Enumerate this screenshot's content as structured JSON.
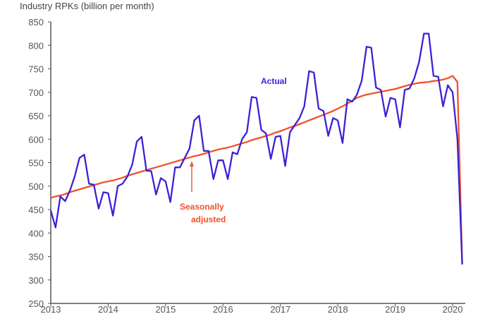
{
  "chart_data": {
    "type": "line",
    "title": "Industry RPKs (billion per month)",
    "xlabel": "",
    "ylabel": "",
    "ylim": [
      250,
      850
    ],
    "yticks": [
      250,
      300,
      350,
      400,
      450,
      500,
      550,
      600,
      650,
      700,
      750,
      800,
      850
    ],
    "xtick_labels": [
      "2013",
      "2014",
      "2015",
      "2016",
      "2017",
      "2018",
      "2019",
      "2020"
    ],
    "x_start": "2013-01",
    "frequency": "monthly",
    "grid": false,
    "series": [
      {
        "name": "Actual",
        "color": "#3b22d6",
        "values": [
          448,
          412,
          478,
          468,
          490,
          520,
          560,
          567,
          505,
          503,
          452,
          487,
          485,
          437,
          500,
          505,
          520,
          545,
          595,
          605,
          533,
          532,
          482,
          517,
          510,
          466,
          540,
          540,
          560,
          580,
          640,
          650,
          575,
          575,
          515,
          555,
          555,
          515,
          572,
          568,
          600,
          615,
          690,
          688,
          620,
          612,
          558,
          605,
          607,
          543,
          615,
          630,
          645,
          670,
          745,
          742,
          665,
          660,
          607,
          645,
          640,
          592,
          685,
          680,
          695,
          725,
          797,
          795,
          710,
          705,
          648,
          688,
          685,
          625,
          705,
          708,
          730,
          765,
          825,
          825,
          735,
          733,
          670,
          715,
          700,
          600,
          333
        ]
      },
      {
        "name": "Seasonally adjusted",
        "color": "#f0522a",
        "values": [
          475,
          478,
          480,
          483,
          487,
          490,
          493,
          496,
          499,
          502,
          505,
          508,
          510,
          512,
          515,
          518,
          522,
          525,
          528,
          531,
          534,
          537,
          540,
          543,
          546,
          549,
          552,
          555,
          558,
          561,
          564,
          566,
          569,
          572,
          575,
          578,
          580,
          582,
          585,
          588,
          591,
          594,
          598,
          601,
          604,
          607,
          610,
          614,
          617,
          621,
          625,
          628,
          632,
          636,
          640,
          644,
          648,
          652,
          656,
          660,
          665,
          670,
          676,
          682,
          688,
          692,
          695,
          697,
          699,
          701,
          703,
          705,
          707,
          710,
          713,
          716,
          718,
          720,
          721,
          722,
          724,
          725,
          727,
          730,
          735,
          722,
          335
        ]
      }
    ],
    "annotations": {
      "actual": "Actual",
      "seasonal_line1": "Seasonally",
      "seasonal_line2": "adjusted"
    }
  }
}
